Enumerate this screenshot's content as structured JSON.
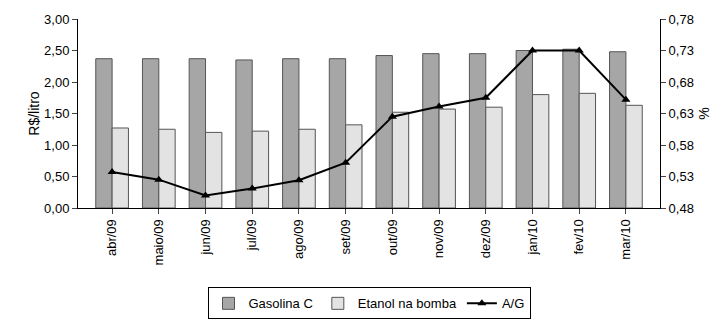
{
  "chart_data": {
    "type": "bar",
    "categories": [
      "abr/09",
      "maio/09",
      "jun/09",
      "jul/09",
      "ago/09",
      "set/09",
      "out/09",
      "nov/09",
      "dez/09",
      "jan/10",
      "fev/10",
      "mar/10"
    ],
    "series": [
      {
        "name": "Gasolina C",
        "type": "bar",
        "color": "#a6a6a6",
        "values": [
          2.37,
          2.37,
          2.37,
          2.35,
          2.37,
          2.37,
          2.42,
          2.45,
          2.45,
          2.5,
          2.52,
          2.48
        ]
      },
      {
        "name": "Etanol na bomba",
        "type": "bar",
        "color": "#e3e3e3",
        "values": [
          1.27,
          1.25,
          1.2,
          1.22,
          1.25,
          1.32,
          1.52,
          1.57,
          1.6,
          1.8,
          1.82,
          1.63
        ]
      },
      {
        "name": "A/G",
        "type": "line",
        "axis": "y2",
        "color": "#000000",
        "marker": "triangle-up",
        "line_style": "solid",
        "values": [
          0.537,
          0.525,
          0.5,
          0.511,
          0.524,
          0.552,
          0.625,
          0.641,
          0.655,
          0.73,
          0.73,
          0.652
        ]
      }
    ],
    "y_label": "R$/litro",
    "y2_label": "%",
    "ylim": [
      0,
      3
    ],
    "yticks": [
      {
        "value": 0,
        "label": "0,00"
      },
      {
        "value": 0.5,
        "label": "0,50"
      },
      {
        "value": 1,
        "label": "1,00"
      },
      {
        "value": 1.5,
        "label": "1,50"
      },
      {
        "value": 2,
        "label": "2,00"
      },
      {
        "value": 2.5,
        "label": "2,50"
      },
      {
        "value": 3,
        "label": "3,00"
      }
    ],
    "y2lim": [
      0.48,
      0.78
    ],
    "y2ticks": [
      {
        "value": 0.48,
        "label": "0,48"
      },
      {
        "value": 0.53,
        "label": "0,53"
      },
      {
        "value": 0.58,
        "label": "0,58"
      },
      {
        "value": 0.63,
        "label": "0,63"
      },
      {
        "value": 0.68,
        "label": "0,68"
      },
      {
        "value": 0.73,
        "label": "0,73"
      },
      {
        "value": 0.78,
        "label": "0,78"
      }
    ],
    "grid": false,
    "legend": "bottom"
  }
}
